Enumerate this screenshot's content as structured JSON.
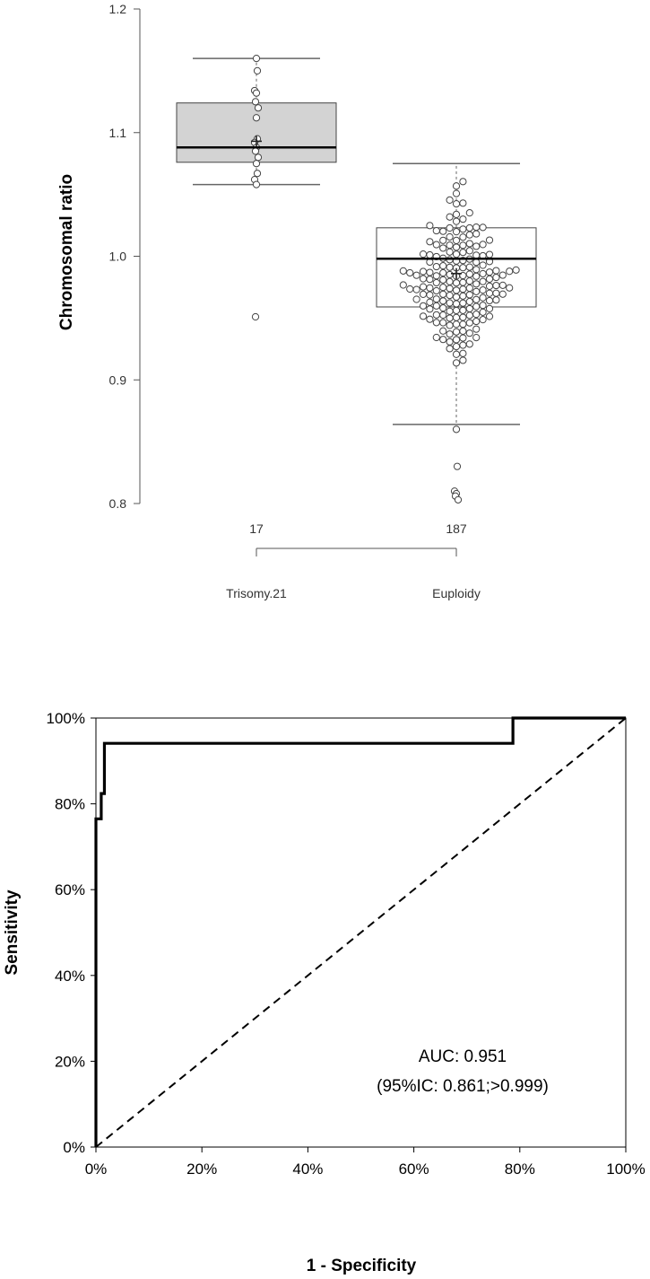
{
  "chart_data": [
    {
      "type": "box",
      "ylabel": "Chromosomal ratio",
      "ylim": [
        0.8,
        1.2
      ],
      "yticks": [
        "0.8",
        "0.9",
        "1.0",
        "1.1",
        "1.2"
      ],
      "groups": [
        {
          "name": "Trisomy.21",
          "n": "17",
          "fill": "#d3d3d3",
          "whisker_low": 1.058,
          "q1": 1.076,
          "median": 1.088,
          "q3": 1.124,
          "whisker_high": 1.16,
          "mean": 1.093,
          "points": [
            1.16,
            1.15,
            1.134,
            1.132,
            1.125,
            1.12,
            1.112,
            1.095,
            1.092,
            1.088,
            1.085,
            1.08,
            1.075,
            1.067,
            1.062,
            1.058,
            0.951
          ]
        },
        {
          "name": "Euploidy",
          "n": "187",
          "fill": "#ffffff",
          "whisker_low": 0.864,
          "q1": 0.959,
          "median": 0.998,
          "q3": 1.023,
          "whisker_high": 1.075,
          "mean": 0.986,
          "outliers": [
            0.86,
            0.83,
            0.81,
            0.808,
            0.806,
            0.803
          ]
        }
      ]
    },
    {
      "type": "line",
      "xlabel": "1 - Specificity",
      "ylabel": "Sensitivity",
      "xlim": [
        0,
        100
      ],
      "ylim": [
        0,
        100
      ],
      "xticks": [
        "0%",
        "20%",
        "40%",
        "60%",
        "80%",
        "100%"
      ],
      "yticks": [
        "0%",
        "20%",
        "40%",
        "60%",
        "80%",
        "100%"
      ],
      "series": [
        {
          "style": "solid",
          "x": [
            0,
            0,
            1,
            1,
            1.6,
            1.6,
            78.7,
            78.7,
            100
          ],
          "y": [
            0,
            76.5,
            76.5,
            82.4,
            82.4,
            94.1,
            94.1,
            100,
            100
          ]
        },
        {
          "style": "dashed",
          "x": [
            0,
            100
          ],
          "y": [
            0,
            100
          ]
        }
      ],
      "annotations": [
        "AUC: 0.951",
        "(95%IC: 0.861;>0.999)"
      ]
    }
  ]
}
